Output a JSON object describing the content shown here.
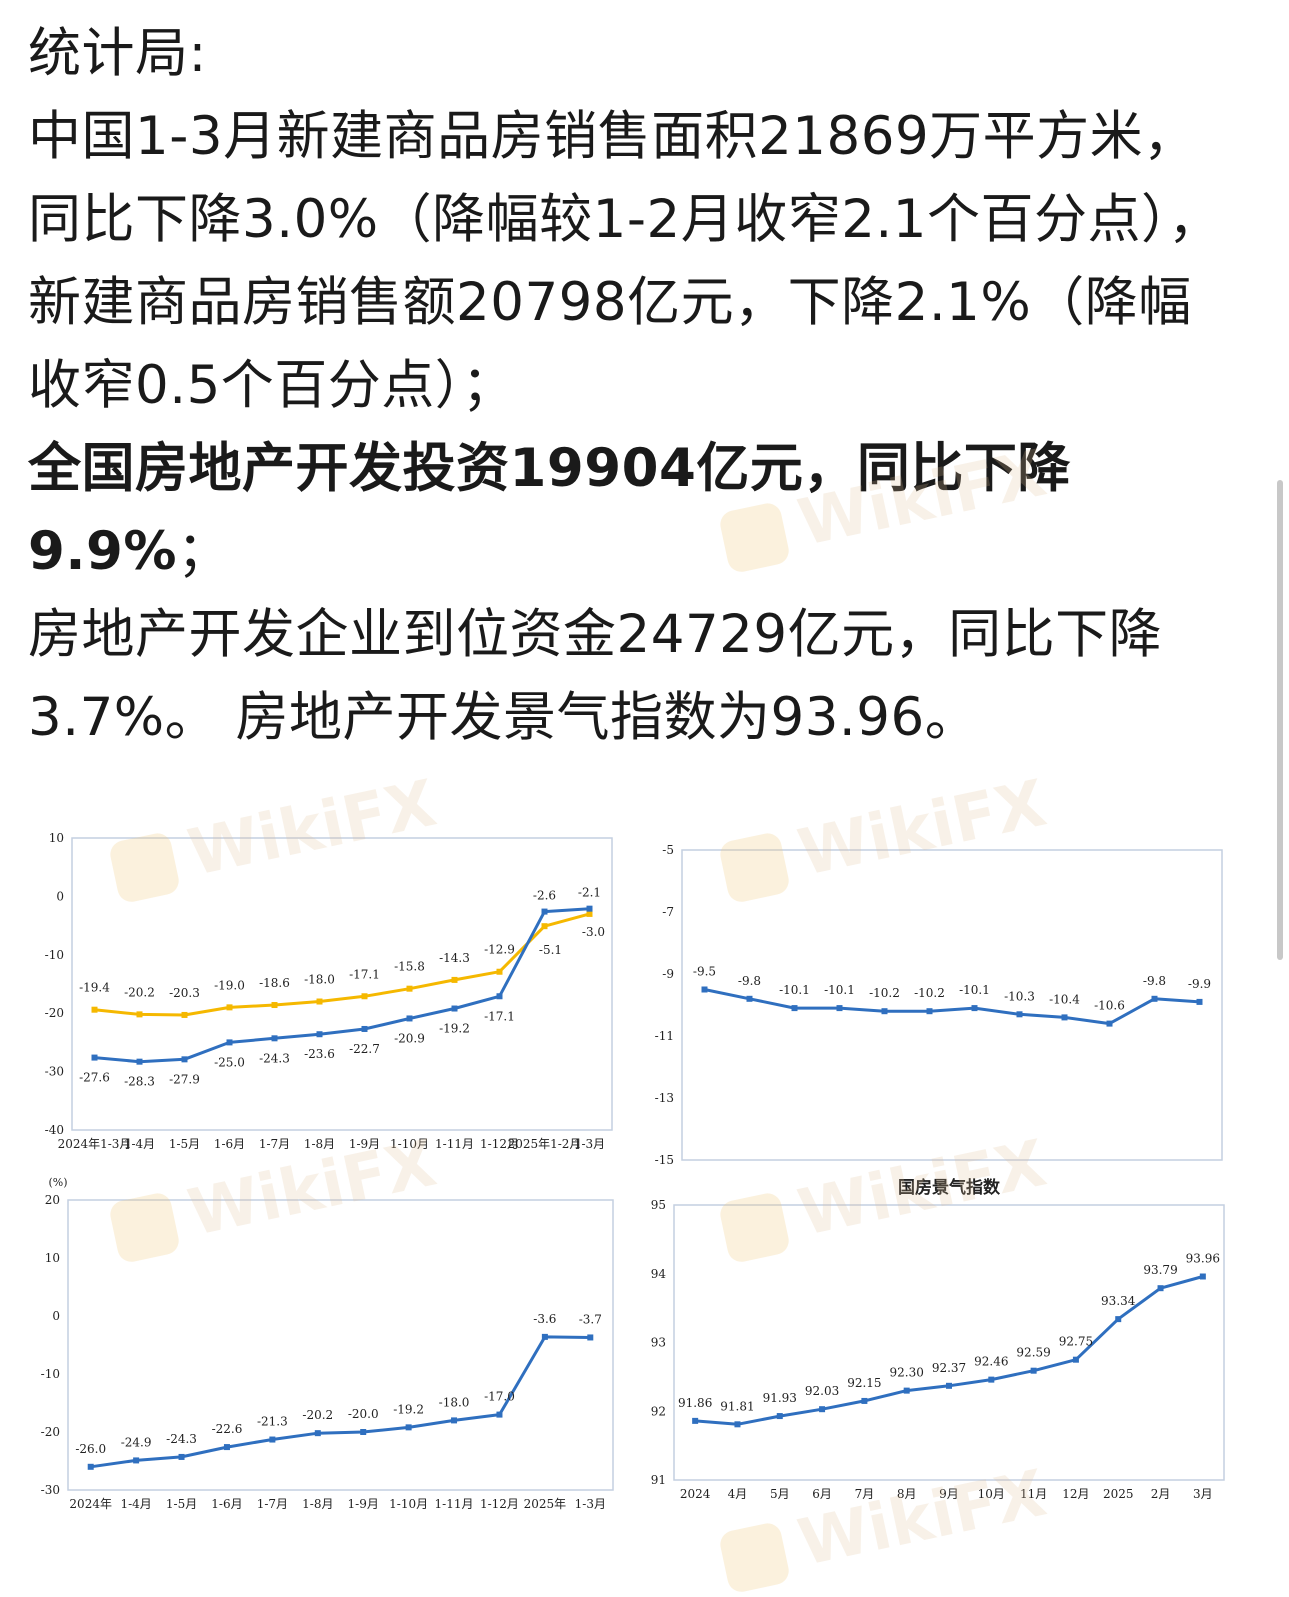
{
  "text": {
    "p1": "统计局:",
    "p2": "中国1-3月新建商品房销售面积21869万平方米，同比下降3.0%（降幅较1-2月收窄2.1个百分点），新建商品房销售额20798亿元，下降2.1%（降幅收窄0.5个百分点）；",
    "p3": "全国房地产开发投资19904亿元，同比下降9.9%",
    "p3_tail": "；",
    "p4": "房地产开发企业到位资金24729亿元，同比下降3.7%。 房地产开发景气指数为93.96。"
  },
  "watermark": "WikiFX",
  "chart_data": [
    {
      "type": "line",
      "title": "",
      "categories": [
        "2024年1-3月",
        "1-4月",
        "1-5月",
        "1-6月",
        "1-7月",
        "1-8月",
        "1-9月",
        "1-10月",
        "1-11月",
        "1-12月",
        "2025年1-2月",
        "1-3月"
      ],
      "ylim": [
        -40,
        10
      ],
      "yticks": [
        10,
        0,
        -10,
        -20,
        -30,
        -40
      ],
      "series": [
        {
          "color": "#f5b800",
          "values": [
            -19.4,
            -20.2,
            -20.3,
            -19.0,
            -18.6,
            -18.0,
            -17.1,
            -15.8,
            -14.3,
            -12.9,
            -5.1,
            -3.0
          ]
        },
        {
          "color": "#2f6fbf",
          "values": [
            -27.6,
            -28.3,
            -27.9,
            -25.0,
            -24.3,
            -23.6,
            -22.7,
            -20.9,
            -19.2,
            -17.1,
            -2.6,
            -2.1
          ]
        }
      ]
    },
    {
      "type": "line",
      "title": "",
      "categories": [
        "",
        "",
        "",
        "",
        "",
        "",
        "",
        "",
        "",
        "",
        "",
        ""
      ],
      "ylim": [
        -15,
        -5
      ],
      "yticks": [
        -5,
        -7,
        -9,
        -11,
        -13,
        -15
      ],
      "series": [
        {
          "color": "#2f6fbf",
          "values": [
            -9.5,
            -9.8,
            -10.1,
            -10.1,
            -10.2,
            -10.2,
            -10.1,
            -10.3,
            -10.4,
            -10.6,
            -9.8,
            -9.9
          ]
        }
      ]
    },
    {
      "type": "line",
      "title": "",
      "unit_label": "(%)",
      "categories": [
        "2024年",
        "1-4月",
        "1-5月",
        "1-6月",
        "1-7月",
        "1-8月",
        "1-9月",
        "1-10月",
        "1-11月",
        "1-12月",
        "2025年",
        "1-3月"
      ],
      "ylim": [
        -30,
        20
      ],
      "yticks": [
        20,
        10,
        0,
        -10,
        -20,
        -30
      ],
      "series": [
        {
          "color": "#2f6fbf",
          "values": [
            -26.0,
            -24.9,
            -24.3,
            -22.6,
            -21.3,
            -20.2,
            -20.0,
            -19.2,
            -18.0,
            -17.0,
            -3.6,
            -3.7
          ]
        }
      ]
    },
    {
      "type": "line",
      "title": "国房景气指数",
      "categories": [
        "2024",
        "4月",
        "5月",
        "6月",
        "7月",
        "8月",
        "9月",
        "10月",
        "11月",
        "12月",
        "2025",
        "2月",
        "3月"
      ],
      "ylim": [
        91,
        95
      ],
      "yticks": [
        95,
        94,
        93,
        92,
        91
      ],
      "series": [
        {
          "color": "#2f6fbf",
          "values": [
            91.86,
            91.81,
            91.93,
            92.03,
            92.15,
            92.3,
            92.37,
            92.46,
            92.59,
            92.75,
            93.34,
            93.79,
            93.96
          ]
        }
      ]
    }
  ]
}
